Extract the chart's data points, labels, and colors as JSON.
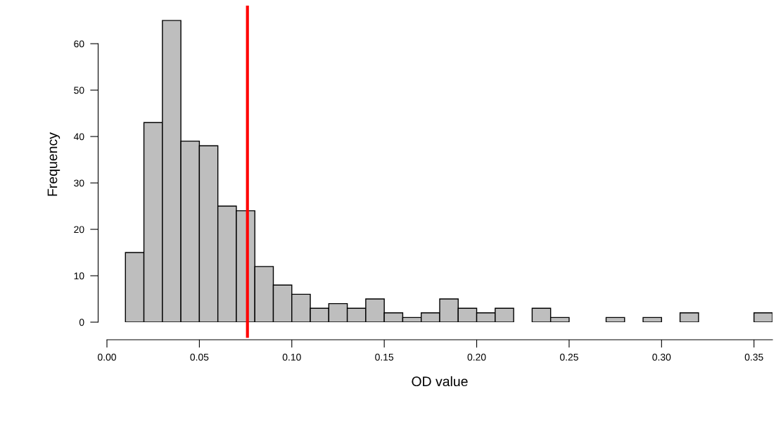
{
  "chart_data": {
    "type": "histogram",
    "xlabel": "OD value",
    "ylabel": "Frequency",
    "bins": [
      0.01,
      0.02,
      0.03,
      0.04,
      0.05,
      0.06,
      0.07,
      0.08,
      0.09,
      0.1,
      0.11,
      0.12,
      0.13,
      0.14,
      0.15,
      0.16,
      0.17,
      0.18,
      0.19,
      0.2,
      0.21,
      0.22,
      0.23,
      0.24,
      0.25,
      0.26,
      0.27,
      0.28,
      0.29,
      0.3,
      0.31,
      0.32,
      0.33,
      0.34,
      0.35,
      0.36
    ],
    "values": [
      15,
      43,
      65,
      39,
      38,
      25,
      24,
      12,
      8,
      6,
      3,
      4,
      3,
      5,
      2,
      1,
      2,
      5,
      3,
      2,
      3,
      0,
      3,
      1,
      0,
      0,
      1,
      0,
      1,
      0,
      2,
      0,
      0,
      0,
      2
    ],
    "color": "#bebebe",
    "xlim": [
      0,
      0.36
    ],
    "ylim": [
      0,
      67.9
    ],
    "xticks": [
      {
        "value": 0,
        "label": "0.00"
      },
      0.05,
      {
        "value": 0.1,
        "label": "0.10"
      },
      0.15,
      {
        "value": 0.2,
        "label": "0.20"
      },
      0.25,
      {
        "value": 0.3,
        "label": "0.30"
      },
      0.35
    ],
    "yticks": [
      0,
      10,
      20,
      30,
      40,
      50,
      60
    ],
    "ref_lines": [
      {
        "axis": "x",
        "value": 0.076,
        "color": "#ff0000"
      }
    ],
    "grid": false
  }
}
